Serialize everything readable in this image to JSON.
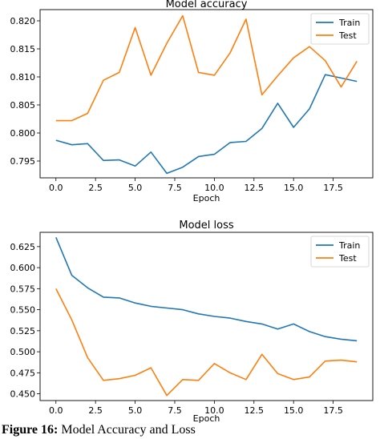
{
  "chart_data": [
    {
      "type": "line",
      "title": "Model accuracy",
      "xlabel": "Epoch",
      "ylabel": "",
      "xlim": [
        -1,
        20
      ],
      "ylim": [
        0.792,
        0.822
      ],
      "xticks": [
        0.0,
        2.5,
        5.0,
        7.5,
        10.0,
        12.5,
        15.0,
        17.5
      ],
      "xtick_labels": [
        "0.0",
        "2.5",
        "5.0",
        "7.5",
        "10.0",
        "12.5",
        "15.0",
        "17.5"
      ],
      "yticks": [
        0.795,
        0.8,
        0.805,
        0.81,
        0.815,
        0.82
      ],
      "ytick_labels": [
        "0.795",
        "0.800",
        "0.805",
        "0.810",
        "0.815",
        "0.820"
      ],
      "legend_position": "top-right",
      "grid": false,
      "x": [
        0,
        1,
        2,
        3,
        4,
        5,
        6,
        7,
        8,
        9,
        10,
        11,
        12,
        13,
        14,
        15,
        16,
        17,
        18,
        19
      ],
      "series": [
        {
          "name": "Train",
          "color": "#1f77b4",
          "values": [
            0.7987,
            0.7979,
            0.7981,
            0.7951,
            0.7952,
            0.7941,
            0.7966,
            0.7928,
            0.7939,
            0.7958,
            0.7962,
            0.7983,
            0.7985,
            0.8008,
            0.8053,
            0.801,
            0.8043,
            0.8104,
            0.8098,
            0.8092
          ]
        },
        {
          "name": "Test",
          "color": "#ff7f0e",
          "values": [
            0.8022,
            0.8022,
            0.8035,
            0.8094,
            0.8108,
            0.8188,
            0.8103,
            0.816,
            0.8209,
            0.8108,
            0.8103,
            0.8143,
            0.8203,
            0.8068,
            0.8102,
            0.8134,
            0.8154,
            0.8129,
            0.8082,
            0.8128
          ]
        }
      ]
    },
    {
      "type": "line",
      "title": "Model loss",
      "xlabel": "Epoch",
      "ylabel": "",
      "xlim": [
        -1,
        20
      ],
      "ylim": [
        0.442,
        0.642
      ],
      "xticks": [
        0.0,
        2.5,
        5.0,
        7.5,
        10.0,
        12.5,
        15.0,
        17.5
      ],
      "xtick_labels": [
        "0.0",
        "2.5",
        "5.0",
        "7.5",
        "10.0",
        "12.5",
        "15.0",
        "17.5"
      ],
      "yticks": [
        0.45,
        0.475,
        0.5,
        0.525,
        0.55,
        0.575,
        0.6,
        0.625
      ],
      "ytick_labels": [
        "0.450",
        "0.475",
        "0.500",
        "0.525",
        "0.550",
        "0.575",
        "0.600",
        "0.625"
      ],
      "legend_position": "top-right",
      "grid": false,
      "x": [
        0,
        1,
        2,
        3,
        4,
        5,
        6,
        7,
        8,
        9,
        10,
        11,
        12,
        13,
        14,
        15,
        16,
        17,
        18,
        19
      ],
      "series": [
        {
          "name": "Train",
          "color": "#1f77b4",
          "values": [
            0.636,
            0.591,
            0.576,
            0.565,
            0.564,
            0.558,
            0.554,
            0.552,
            0.55,
            0.545,
            0.542,
            0.54,
            0.536,
            0.533,
            0.527,
            0.533,
            0.524,
            0.518,
            0.515,
            0.513
          ]
        },
        {
          "name": "Test",
          "color": "#ff7f0e",
          "values": [
            0.575,
            0.538,
            0.493,
            0.466,
            0.468,
            0.472,
            0.481,
            0.448,
            0.467,
            0.466,
            0.486,
            0.475,
            0.467,
            0.497,
            0.474,
            0.467,
            0.47,
            0.489,
            0.49,
            0.488
          ]
        }
      ]
    }
  ],
  "caption": {
    "label": "Figure 16:",
    "text": " Model Accuracy and Loss"
  }
}
